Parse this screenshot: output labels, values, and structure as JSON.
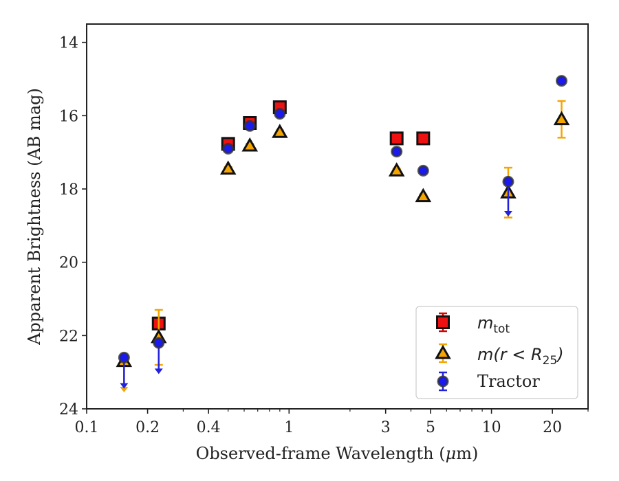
{
  "chart_data": {
    "type": "scatter",
    "xlabel_pre": "Observed-frame Wavelength (",
    "xlabel_mu": "μ",
    "xlabel_post": "m)",
    "ylabel": "Apparent Brightness (AB mag)",
    "x_scale": "log",
    "xlim": [
      0.1,
      30
    ],
    "ylim": [
      24,
      13.5
    ],
    "y_inverted": true,
    "grid": false,
    "legend_position": "lower-right",
    "x_ticks": [
      {
        "value": 0.1,
        "label": "0.1"
      },
      {
        "value": 0.2,
        "label": "0.2"
      },
      {
        "value": 0.4,
        "label": "0.4"
      },
      {
        "value": 1,
        "label": "1"
      },
      {
        "value": 3,
        "label": "3"
      },
      {
        "value": 5,
        "label": "5"
      },
      {
        "value": 10,
        "label": "10"
      },
      {
        "value": 20,
        "label": "20"
      }
    ],
    "x_minor_ticks": [
      0.3,
      0.5,
      0.6,
      0.7,
      0.8,
      0.9,
      2,
      4,
      6,
      7,
      8,
      9,
      30
    ],
    "y_ticks": [
      {
        "value": 14,
        "label": "14"
      },
      {
        "value": 16,
        "label": "16"
      },
      {
        "value": 18,
        "label": "18"
      },
      {
        "value": 20,
        "label": "20"
      },
      {
        "value": 22,
        "label": "22"
      },
      {
        "value": 24,
        "label": "24"
      }
    ],
    "series": [
      {
        "key": "mtot",
        "marker": "square",
        "color": "#ee1111",
        "edge": "#111111",
        "errcolor": "#dd0000",
        "points": [
          {
            "x": 0.227,
            "y": 21.67,
            "err": 0.1
          },
          {
            "x": 0.5,
            "y": 16.77,
            "err": 0.08
          },
          {
            "x": 0.64,
            "y": 16.2,
            "err": 0.08
          },
          {
            "x": 0.9,
            "y": 15.77,
            "err": 0.1
          },
          {
            "x": 3.4,
            "y": 16.62,
            "err": 0.05
          },
          {
            "x": 4.6,
            "y": 16.62,
            "err": 0.05
          }
        ]
      },
      {
        "key": "mr25",
        "marker": "triangle",
        "color": "#f5a500",
        "edge": "#111111",
        "errcolor": "#f5a500",
        "points": [
          {
            "x": 0.153,
            "y": 22.7,
            "upper_limit_to": 23.55
          },
          {
            "x": 0.227,
            "y": 22.05,
            "err": 0.75
          },
          {
            "x": 0.5,
            "y": 17.45,
            "err": 0.05
          },
          {
            "x": 0.64,
            "y": 16.82,
            "err": 0.05
          },
          {
            "x": 0.9,
            "y": 16.45,
            "err": 0.05
          },
          {
            "x": 3.4,
            "y": 17.5,
            "err": 0.05
          },
          {
            "x": 4.6,
            "y": 18.2,
            "err": 0.05
          },
          {
            "x": 12.1,
            "y": 18.1,
            "err": 0.68
          },
          {
            "x": 22.2,
            "y": 16.1,
            "err": 0.5
          }
        ]
      },
      {
        "key": "tractor",
        "marker": "circle",
        "color": "#1a1aee",
        "edge": "#333333",
        "errcolor": "#2222dd",
        "points": [
          {
            "x": 0.153,
            "y": 22.6,
            "upper_limit_to": 23.45
          },
          {
            "x": 0.227,
            "y": 22.2,
            "upper_limit_to": 23.05
          },
          {
            "x": 0.5,
            "y": 16.9,
            "err": 0.05
          },
          {
            "x": 0.64,
            "y": 16.28,
            "err": 0.05
          },
          {
            "x": 0.9,
            "y": 15.95,
            "err": 0.05
          },
          {
            "x": 3.4,
            "y": 16.98,
            "err": 0.05
          },
          {
            "x": 4.6,
            "y": 17.5,
            "err": 0.05
          },
          {
            "x": 12.1,
            "y": 17.8,
            "upper_limit_to": 18.75
          },
          {
            "x": 22.2,
            "y": 15.05,
            "err": 0.05
          }
        ]
      }
    ],
    "legend": {
      "mtot": {
        "base": "m",
        "sub": "tot"
      },
      "mr25": {
        "pre": "m(r < R",
        "sub": "25",
        "post": ")"
      },
      "tractor": {
        "text": "Tractor"
      }
    }
  }
}
